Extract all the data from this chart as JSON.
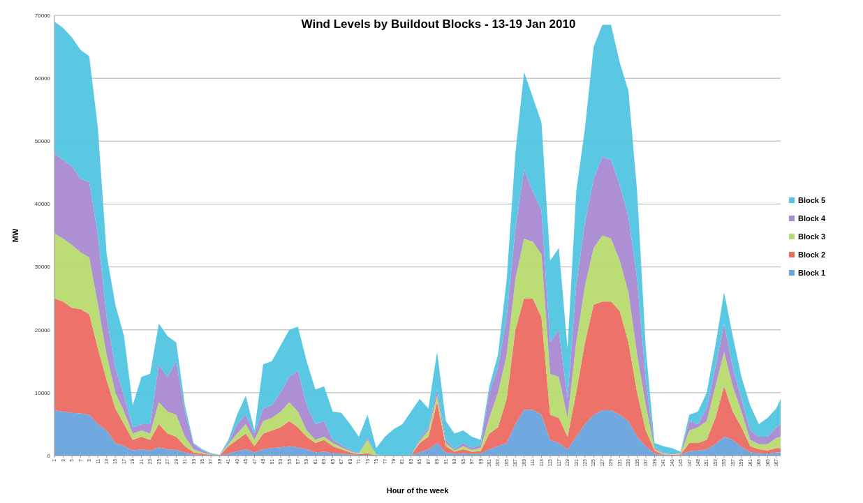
{
  "chart_data": {
    "type": "area",
    "stacked": true,
    "title": "Wind Levels by Buildout Blocks - 13-19 Jan 2010",
    "xlabel": "Hour of the week",
    "ylabel": "MW",
    "x": [
      1,
      3,
      5,
      7,
      9,
      11,
      13,
      15,
      17,
      19,
      21,
      23,
      25,
      27,
      29,
      31,
      33,
      35,
      37,
      39,
      41,
      43,
      45,
      47,
      49,
      51,
      53,
      55,
      57,
      59,
      61,
      63,
      65,
      67,
      69,
      71,
      73,
      75,
      77,
      79,
      81,
      83,
      85,
      87,
      89,
      91,
      93,
      95,
      97,
      99,
      101,
      103,
      105,
      107,
      109,
      111,
      113,
      115,
      117,
      119,
      121,
      123,
      125,
      127,
      129,
      131,
      133,
      135,
      137,
      139,
      141,
      143,
      145,
      147,
      149,
      151,
      153,
      155,
      157,
      159,
      161,
      163,
      165,
      167,
      168
    ],
    "xlim": [
      1,
      168
    ],
    "xticks": [
      1,
      3,
      5,
      7,
      9,
      11,
      13,
      15,
      17,
      19,
      21,
      23,
      25,
      27,
      29,
      31,
      33,
      35,
      37,
      39,
      41,
      43,
      45,
      47,
      49,
      51,
      53,
      55,
      57,
      59,
      61,
      63,
      65,
      67,
      69,
      71,
      73,
      75,
      77,
      79,
      81,
      83,
      85,
      87,
      89,
      91,
      93,
      95,
      97,
      99,
      101,
      103,
      105,
      107,
      109,
      111,
      113,
      115,
      117,
      119,
      121,
      123,
      125,
      127,
      129,
      131,
      133,
      135,
      137,
      139,
      141,
      143,
      145,
      147,
      149,
      151,
      153,
      155,
      157,
      159,
      161,
      163,
      165,
      167
    ],
    "ylim": [
      0,
      70000
    ],
    "yticks": [
      0,
      10000,
      20000,
      30000,
      40000,
      50000,
      60000,
      70000
    ],
    "grid": "y",
    "legend": "right",
    "series": [
      {
        "name": "Block 1",
        "color": "#6aa3de",
        "values": [
          7200,
          7000,
          6800,
          6700,
          6500,
          5000,
          4000,
          2000,
          1500,
          800,
          1000,
          800,
          1300,
          1000,
          900,
          500,
          200,
          100,
          0,
          0,
          300,
          700,
          1000,
          500,
          1000,
          1200,
          1300,
          1500,
          1300,
          1000,
          500,
          600,
          400,
          300,
          200,
          100,
          100,
          0,
          0,
          0,
          0,
          0,
          500,
          1000,
          2000,
          500,
          300,
          400,
          300,
          300,
          1000,
          1500,
          2000,
          5000,
          7300,
          7300,
          6500,
          2500,
          2000,
          1000,
          3000,
          5000,
          6500,
          7200,
          7200,
          6500,
          5500,
          3000,
          1500,
          300,
          100,
          0,
          100,
          700,
          800,
          1000,
          1800,
          3000,
          2500,
          1400,
          500,
          400,
          300,
          500,
          500
        ]
      },
      {
        "name": "Block 2",
        "color": "#eb6a62",
        "values": [
          17800,
          17500,
          16700,
          16600,
          16000,
          12000,
          8000,
          5500,
          3500,
          1700,
          2000,
          1700,
          3700,
          2500,
          2100,
          1000,
          300,
          200,
          100,
          0,
          1200,
          1800,
          2500,
          1000,
          2500,
          2800,
          3200,
          4000,
          3200,
          2000,
          1500,
          1900,
          1100,
          700,
          300,
          100,
          300,
          0,
          0,
          0,
          0,
          0,
          1500,
          2000,
          6500,
          1000,
          300,
          600,
          300,
          400,
          2500,
          3000,
          7000,
          15000,
          17700,
          17700,
          15500,
          4000,
          4000,
          2000,
          7000,
          13000,
          17500,
          17300,
          17300,
          16500,
          12500,
          7000,
          2500,
          500,
          100,
          100,
          100,
          1300,
          1200,
          1500,
          4200,
          8000,
          4500,
          3100,
          1000,
          600,
          500,
          700,
          700
        ]
      },
      {
        "name": "Block 3",
        "color": "#b8db6e",
        "values": [
          10300,
          10000,
          10000,
          9000,
          9000,
          7000,
          4000,
          2500,
          2000,
          1000,
          1000,
          1000,
          3500,
          3500,
          3500,
          1500,
          500,
          200,
          100,
          0,
          300,
          1000,
          1500,
          1000,
          2000,
          2000,
          2500,
          3000,
          2500,
          1000,
          500,
          500,
          500,
          300,
          200,
          100,
          2100,
          100,
          0,
          0,
          0,
          0,
          300,
          1000,
          1000,
          500,
          200,
          500,
          300,
          500,
          2500,
          5500,
          7000,
          8000,
          9500,
          9000,
          10000,
          6500,
          6500,
          3000,
          8000,
          9000,
          9000,
          10500,
          10000,
          8000,
          8000,
          6000,
          4000,
          200,
          100,
          100,
          100,
          2000,
          2500,
          3000,
          5000,
          5500,
          4000,
          2500,
          1000,
          800,
          1000,
          1600,
          1800
        ]
      },
      {
        "name": "Block 4",
        "color": "#a98ad2",
        "values": [
          12700,
          12500,
          12500,
          11700,
          12000,
          11000,
          6000,
          4000,
          2500,
          1000,
          1000,
          1500,
          6000,
          5500,
          8500,
          4000,
          800,
          300,
          100,
          0,
          200,
          1500,
          1500,
          1000,
          2000,
          2000,
          3000,
          4000,
          6500,
          4000,
          2500,
          2500,
          500,
          400,
          200,
          100,
          300,
          100,
          0,
          0,
          0,
          0,
          300,
          500,
          1000,
          500,
          200,
          500,
          300,
          500,
          4000,
          4000,
          6000,
          8000,
          11000,
          8000,
          7000,
          5000,
          7500,
          3000,
          9000,
          10000,
          11000,
          12500,
          12500,
          12000,
          12000,
          12000,
          4000,
          300,
          100,
          100,
          100,
          1500,
          500,
          2000,
          3000,
          4500,
          3000,
          2000,
          1500,
          1200,
          1200,
          1700,
          2000
        ]
      },
      {
        "name": "Block 5",
        "color": "#52c5e2",
        "values": [
          21000,
          21000,
          20500,
          20500,
          20000,
          17000,
          10000,
          10000,
          9500,
          3500,
          7500,
          8000,
          6500,
          6500,
          3000,
          1000,
          200,
          200,
          100,
          100,
          500,
          1500,
          3000,
          500,
          7000,
          7000,
          7500,
          7500,
          7000,
          7000,
          5500,
          5500,
          4500,
          5100,
          4100,
          2600,
          3700,
          1000,
          3000,
          4200,
          5000,
          7000,
          6400,
          3000,
          6000,
          3000,
          2500,
          2000,
          1800,
          800,
          1000,
          2000,
          6000,
          12000,
          15500,
          15000,
          14000,
          13000,
          13000,
          8000,
          15000,
          15000,
          21000,
          21000,
          21500,
          19500,
          20000,
          14000,
          5000,
          700,
          1100,
          900,
          200,
          1000,
          2000,
          2500,
          3500,
          5000,
          5000,
          3500,
          4000,
          2000,
          3000,
          3000,
          4000
        ]
      }
    ]
  }
}
